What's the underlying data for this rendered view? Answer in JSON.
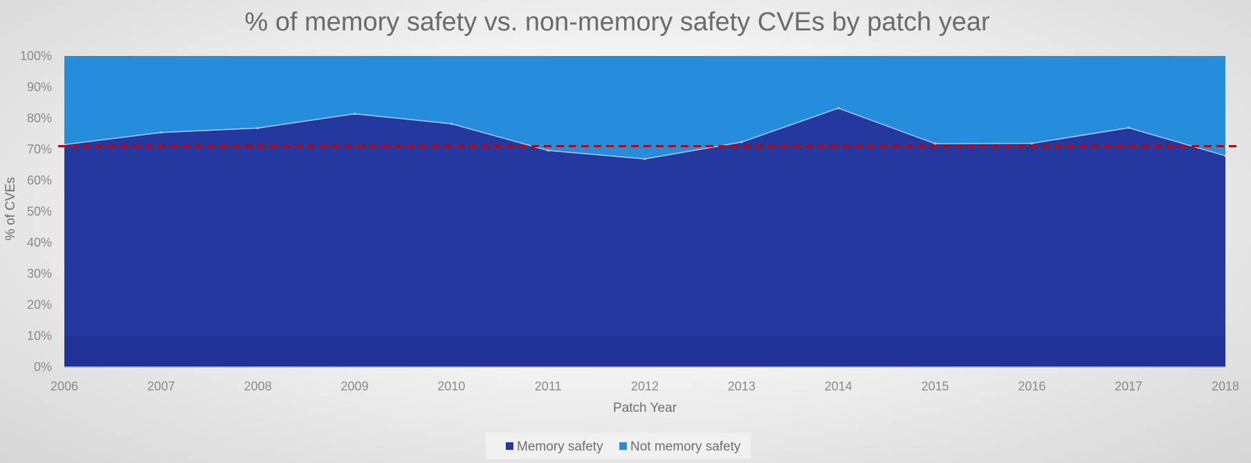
{
  "chart_data": {
    "type": "area",
    "stacked": "percent",
    "title": "% of memory safety vs. non-memory safety CVEs by patch year",
    "xlabel": "Patch Year",
    "ylabel": "% of CVEs",
    "categories": [
      "2006",
      "2007",
      "2008",
      "2009",
      "2010",
      "2011",
      "2012",
      "2013",
      "2014",
      "2015",
      "2016",
      "2017",
      "2018"
    ],
    "ylim": [
      0,
      100
    ],
    "yticks": [
      "0%",
      "10%",
      "20%",
      "30%",
      "40%",
      "50%",
      "60%",
      "70%",
      "80%",
      "90%",
      "100%"
    ],
    "series": [
      {
        "name": "Memory safety",
        "values": [
          71.5,
          75.4,
          76.8,
          81.4,
          78.2,
          69.6,
          66.9,
          72.3,
          83.2,
          71.8,
          71.9,
          76.9,
          67.9
        ],
        "color": "#2438a0"
      },
      {
        "name": "Not memory safety",
        "values": [
          28.5,
          24.6,
          23.2,
          18.6,
          21.8,
          30.4,
          33.1,
          27.7,
          16.8,
          28.2,
          28.1,
          23.1,
          32.1
        ],
        "color": "#268ddd"
      }
    ],
    "reference_line": {
      "value": 71,
      "style": "dashed",
      "color": "#c00000"
    },
    "grid": false,
    "legend_position": "bottom"
  }
}
